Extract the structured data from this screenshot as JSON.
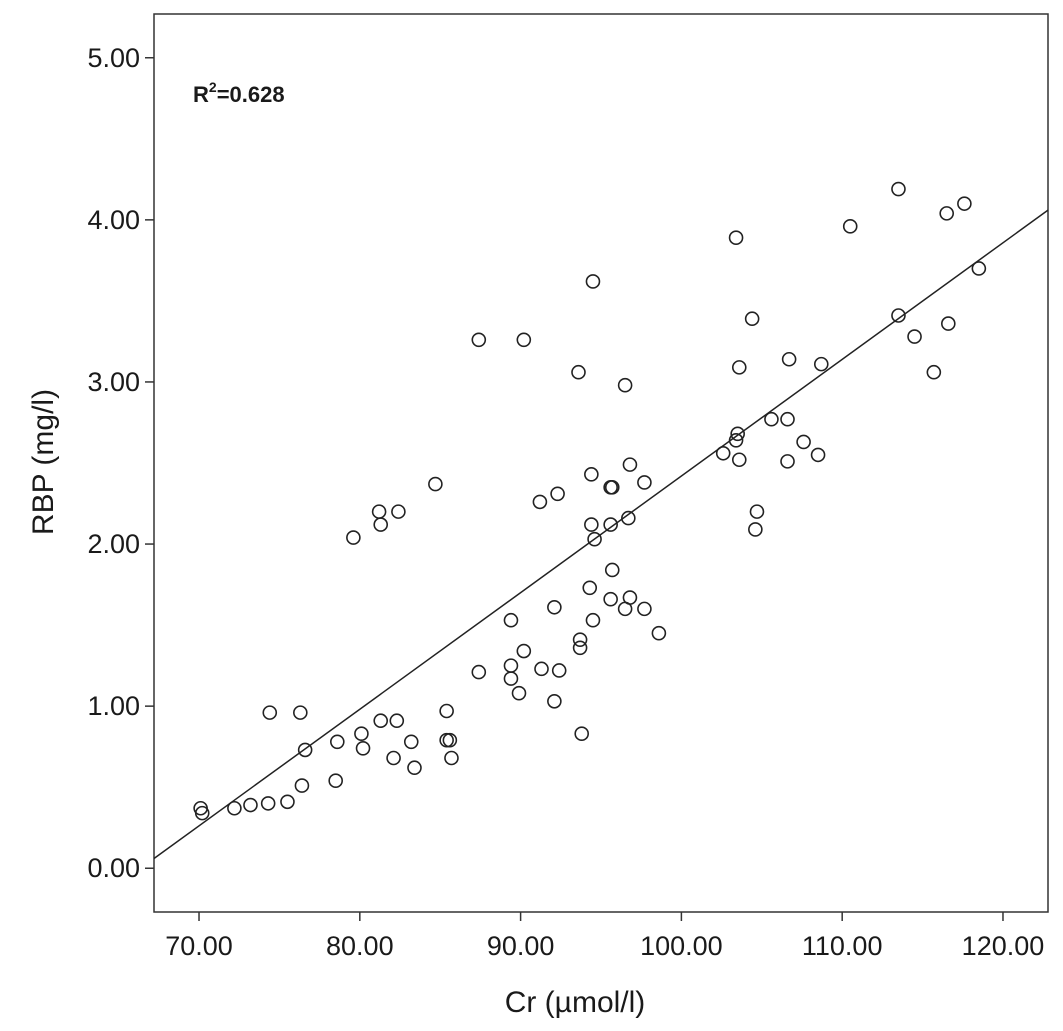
{
  "chart_data": {
    "type": "scatter",
    "title": "",
    "xlabel": "Cr (µmol/l)",
    "ylabel": "RBP (mg/l)",
    "xlim": [
      67.2,
      122.8
    ],
    "ylim": [
      -0.27,
      5.27
    ],
    "x_ticks": [
      70,
      80,
      90,
      100,
      110,
      120
    ],
    "x_tick_labels": [
      "70.00",
      "80.00",
      "90.00",
      "100.00",
      "110.00",
      "120.00"
    ],
    "y_ticks": [
      0,
      1,
      2,
      3,
      4,
      5
    ],
    "y_tick_labels": [
      "0.00",
      "1.00",
      "2.00",
      "3.00",
      "4.00",
      "5.00"
    ],
    "grid": false,
    "annotation": {
      "prefix": "R",
      "superscript": "2",
      "rest": "=0.628"
    },
    "fit_line": {
      "x": [
        67.2,
        122.8
      ],
      "y": [
        0.06,
        4.06
      ]
    },
    "points": [
      [
        70.1,
        0.37
      ],
      [
        70.2,
        0.34
      ],
      [
        72.2,
        0.37
      ],
      [
        73.2,
        0.39
      ],
      [
        74.3,
        0.4
      ],
      [
        75.5,
        0.41
      ],
      [
        74.4,
        0.96
      ],
      [
        76.3,
        0.96
      ],
      [
        76.4,
        0.51
      ],
      [
        76.6,
        0.73
      ],
      [
        78.5,
        0.54
      ],
      [
        78.6,
        0.78
      ],
      [
        79.6,
        2.04
      ],
      [
        80.1,
        0.83
      ],
      [
        80.2,
        0.74
      ],
      [
        81.3,
        0.91
      ],
      [
        81.2,
        2.2
      ],
      [
        81.3,
        2.12
      ],
      [
        82.1,
        0.68
      ],
      [
        82.3,
        0.91
      ],
      [
        82.4,
        2.2
      ],
      [
        83.2,
        0.78
      ],
      [
        83.4,
        0.62
      ],
      [
        84.7,
        2.37
      ],
      [
        85.4,
        0.97
      ],
      [
        85.4,
        0.79
      ],
      [
        85.6,
        0.79
      ],
      [
        85.7,
        0.68
      ],
      [
        87.4,
        1.21
      ],
      [
        87.4,
        3.26
      ],
      [
        89.4,
        1.53
      ],
      [
        89.4,
        1.25
      ],
      [
        89.4,
        1.17
      ],
      [
        89.9,
        1.08
      ],
      [
        90.2,
        1.34
      ],
      [
        90.2,
        3.26
      ],
      [
        91.2,
        2.26
      ],
      [
        91.3,
        1.23
      ],
      [
        92.1,
        1.61
      ],
      [
        92.1,
        1.03
      ],
      [
        92.3,
        2.31
      ],
      [
        92.4,
        1.22
      ],
      [
        93.6,
        3.06
      ],
      [
        93.7,
        1.41
      ],
      [
        93.7,
        1.36
      ],
      [
        93.8,
        0.83
      ],
      [
        94.3,
        1.73
      ],
      [
        94.4,
        2.43
      ],
      [
        94.4,
        2.12
      ],
      [
        94.5,
        1.53
      ],
      [
        94.5,
        3.62
      ],
      [
        94.6,
        2.03
      ],
      [
        95.6,
        2.35
      ],
      [
        95.6,
        2.12
      ],
      [
        95.6,
        1.66
      ],
      [
        95.7,
        2.35
      ],
      [
        95.7,
        1.84
      ],
      [
        96.5,
        2.98
      ],
      [
        96.5,
        1.6
      ],
      [
        96.7,
        2.16
      ],
      [
        96.8,
        2.49
      ],
      [
        96.8,
        1.67
      ],
      [
        97.7,
        2.38
      ],
      [
        97.7,
        1.6
      ],
      [
        98.6,
        1.45
      ],
      [
        102.6,
        2.56
      ],
      [
        103.4,
        2.64
      ],
      [
        103.5,
        2.68
      ],
      [
        103.4,
        3.89
      ],
      [
        103.6,
        3.09
      ],
      [
        103.6,
        2.52
      ],
      [
        104.4,
        3.39
      ],
      [
        104.6,
        2.09
      ],
      [
        104.7,
        2.2
      ],
      [
        105.6,
        2.77
      ],
      [
        106.6,
        2.77
      ],
      [
        106.6,
        2.51
      ],
      [
        106.7,
        3.14
      ],
      [
        107.6,
        2.63
      ],
      [
        108.5,
        2.55
      ],
      [
        108.7,
        3.11
      ],
      [
        110.5,
        3.96
      ],
      [
        113.5,
        4.19
      ],
      [
        113.5,
        3.41
      ],
      [
        114.5,
        3.28
      ],
      [
        115.7,
        3.06
      ],
      [
        116.5,
        4.04
      ],
      [
        116.6,
        3.36
      ],
      [
        117.6,
        4.1
      ],
      [
        118.5,
        3.7
      ]
    ]
  }
}
